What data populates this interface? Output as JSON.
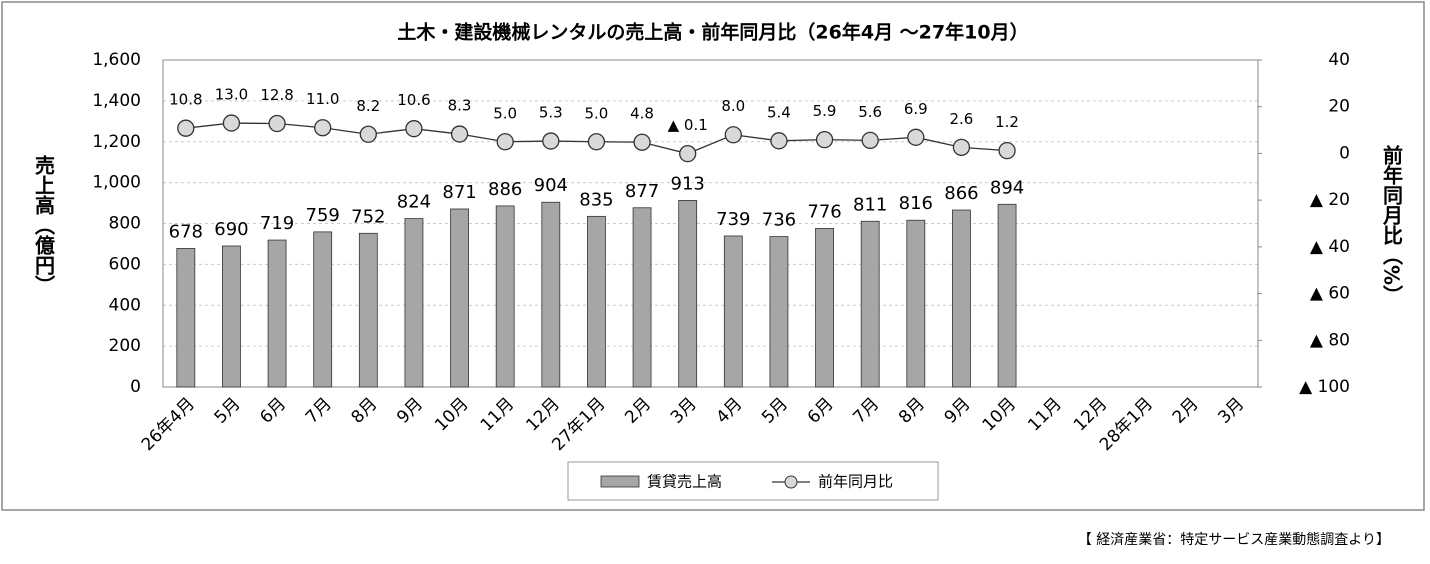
{
  "chart_data": {
    "type": "bar_line",
    "title": "土木・建設機械レンタルの売上高・前年同月比（26年4月 ～27年10月）",
    "ylabel": "売上高（億円）",
    "y2label": "前年同月比（%）",
    "source": "【 経済産業省：特定サービス産業動態調査より】",
    "categories": [
      "26年4月",
      "5月",
      "6月",
      "7月",
      "8月",
      "9月",
      "10月",
      "11月",
      "12月",
      "27年1月",
      "2月",
      "3月",
      "4月",
      "5月",
      "6月",
      "7月",
      "8月",
      "9月",
      "10月",
      "11月",
      "12月",
      "28年1月",
      "2月",
      "3月"
    ],
    "series": [
      {
        "name": "賃貸売上高",
        "type": "bar",
        "color": "#a6a6a6",
        "values": [
          678,
          690,
          719,
          759,
          752,
          824,
          871,
          886,
          904,
          835,
          877,
          913,
          739,
          736,
          776,
          811,
          816,
          866,
          894,
          null,
          null,
          null,
          null,
          null
        ]
      },
      {
        "name": "前年同月比",
        "type": "line",
        "axis": "y2",
        "color": "#d9d9d9",
        "values": [
          10.8,
          13.0,
          12.8,
          11.0,
          8.2,
          10.6,
          8.3,
          5.0,
          5.3,
          5.0,
          4.8,
          -0.1,
          8.0,
          5.4,
          5.9,
          5.6,
          6.9,
          2.6,
          1.2,
          null,
          null,
          null,
          null,
          null
        ],
        "value_labels": [
          "10.8",
          "13.0",
          "12.8",
          "11.0",
          "8.2",
          "10.6",
          "8.3",
          "5.0",
          "5.3",
          "5.0",
          "4.8",
          "▲ 0.1",
          "8.0",
          "5.4",
          "5.9",
          "5.6",
          "6.9",
          "2.6",
          "1.2",
          null,
          null,
          null,
          null,
          null
        ]
      }
    ],
    "ylim": [
      0,
      1600
    ],
    "yticks": [
      0,
      200,
      400,
      600,
      800,
      {
        "value": 1000,
        "label": "1,000"
      },
      {
        "value": 1200,
        "label": "1,200"
      },
      {
        "value": 1400,
        "label": "1,400"
      },
      {
        "value": 1600,
        "label": "1,600"
      }
    ],
    "y2lim": [
      -100,
      40
    ],
    "y2ticks": [
      40,
      20,
      0,
      {
        "value": -20,
        "label": "▲ 20"
      },
      {
        "value": -40,
        "label": "▲ 40"
      },
      {
        "value": -60,
        "label": "▲ 60"
      },
      {
        "value": -80,
        "label": "▲ 80"
      },
      {
        "value": -100,
        "label": "▲ 100"
      }
    ],
    "grid": true,
    "legend": "bottom"
  }
}
